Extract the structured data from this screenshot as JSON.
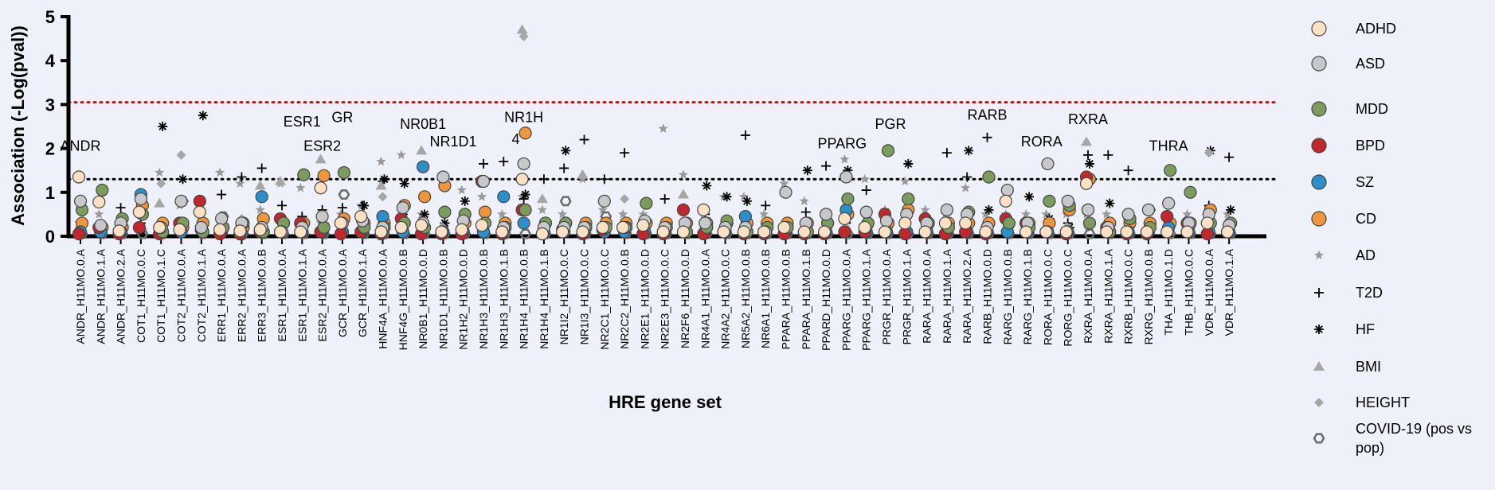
{
  "chart_data": {
    "type": "scatter",
    "title": "",
    "xlabel": "HRE gene set",
    "ylabel": "Association (-Log(pval))",
    "ylim": [
      0,
      5
    ],
    "yticks": [
      "0",
      "1",
      "2",
      "3",
      "4",
      "5"
    ],
    "thresholds": [
      {
        "value": 3.05,
        "style": "dotted",
        "color": "#c0141c"
      },
      {
        "value": 1.3,
        "style": "dotted",
        "color": "#000000"
      }
    ],
    "categories": [
      "ANDR_H11MO.0.A",
      "ANDR_H11MO.1.A",
      "ANDR_H11MO.2.A",
      "COT1_H11MO.0.C",
      "COT1_H11MO.1.C",
      "COT2_H11MO.0.A",
      "COT2_H11MO.1.A",
      "ERR1_H11MO.0.A",
      "ERR2_H11MO.0.A",
      "ERR3_H11MO.0.B",
      "ESR1_H11MO.0.A",
      "ESR1_H11MO.1.A",
      "ESR2_H11MO.0.A",
      "GCR_H11MO.0.A",
      "GCR_H11MO.1.A",
      "HNF4A_H11MO.0.A",
      "HNF4G_H11MO.0.B",
      "NR0B1_H11MO.0.D",
      "NR1D1_H11MO.0.B",
      "NR1H2_H11MO.0.D",
      "NR1H3_H11MO.0.B",
      "NR1H3_H11MO.1.B",
      "NR1H4_H11MO.0.B",
      "NR1H4_H11MO.1.B",
      "NR1I2_H11MO.0.C",
      "NR1I3_H11MO.0.C",
      "NR2C1_H11MO.0.C",
      "NR2C2_H11MO.0.B",
      "NR2E1_H11MO.0.D",
      "NR2E3_H11MO.0.C",
      "NR2F6_H11MO.0.D",
      "NR4A1_H11MO.0.A",
      "NR4A2_H11MO.0.C",
      "NR5A2_H11MO.0.B",
      "NR6A1_H11MO.0.B",
      "PPARA_H11MO.0.B",
      "PPARA_H11MO.1.B",
      "PPARD_H11MO.0.D",
      "PPARG_H11MO.0.A",
      "PPARG_H11MO.1.A",
      "PRGR_H11MO.0.A",
      "PRGR_H11MO.1.A",
      "RARA_H11MO.0.A",
      "RARA_H11MO.1.A",
      "RARA_H11MO.2.A",
      "RARB_H11MO.0.D",
      "RARG_H11MO.0.B",
      "RARG_H11MO.1.B",
      "RORA_H11MO.0.C",
      "RORG_H11MO.0.C",
      "RXRA_H11MO.0.A",
      "RXRA_H11MO.1.A",
      "RXRB_H11MO.0.C",
      "RXRG_H11MO.0.B",
      "THA_H11MO.1.D",
      "THB_H11MO.0.C",
      "VDR_H11MO.0.A",
      "VDR_H11MO.1.A"
    ],
    "series": [
      {
        "name": "ADHD",
        "marker": "circle",
        "color": "#fbe0c4",
        "values": [
          1.35,
          0.78,
          0.12,
          0.55,
          0.2,
          0.15,
          0.55,
          0.15,
          0.12,
          0.15,
          0.1,
          0.1,
          1.1,
          0.3,
          0.45,
          0.1,
          0.2,
          0.25,
          0.1,
          0.15,
          0.25,
          0.1,
          1.3,
          0.05,
          0.1,
          0.1,
          0.2,
          0.2,
          0.25,
          0.1,
          0.1,
          0.6,
          0.1,
          0.1,
          0.1,
          0.2,
          0.1,
          0.1,
          0.4,
          0.2,
          0.1,
          0.3,
          0.1,
          0.3,
          0.3,
          0.1,
          0.8,
          0.1,
          0.1,
          0.1,
          1.2,
          0.1,
          0.1,
          0.1,
          0.1,
          0.1,
          0.3,
          0.1
        ]
      },
      {
        "name": "ASD",
        "marker": "circle",
        "color": "#c7c8cc",
        "values": [
          0.8,
          0.25,
          0.3,
          0.85,
          0.2,
          0.8,
          0.2,
          0.4,
          0.3,
          0.2,
          0.1,
          0.2,
          0.45,
          0.3,
          0.35,
          0.2,
          0.65,
          0.3,
          1.35,
          0.35,
          1.25,
          0.2,
          1.65,
          0.2,
          0.2,
          0.2,
          0.8,
          0.2,
          0.35,
          0.2,
          0.3,
          0.3,
          0.2,
          0.2,
          0.1,
          1.0,
          0.3,
          0.5,
          1.35,
          0.55,
          0.35,
          0.5,
          0.3,
          0.6,
          0.5,
          0.2,
          1.05,
          0.3,
          1.65,
          0.8,
          0.6,
          0.2,
          0.5,
          0.6,
          0.75,
          0.3,
          0.5,
          0.25
        ]
      },
      {
        "name": "MDD",
        "marker": "circle",
        "color": "#7c9c5d",
        "values": [
          0.6,
          1.05,
          0.4,
          0.5,
          0.1,
          0.3,
          0.1,
          0.2,
          0.3,
          0.1,
          0.3,
          1.4,
          0.2,
          1.45,
          0.2,
          0.2,
          0.3,
          0.2,
          0.55,
          0.5,
          0.3,
          0.2,
          0.6,
          0.3,
          0.3,
          0.2,
          0.2,
          0.2,
          0.75,
          0.2,
          0.1,
          0.2,
          0.35,
          0.1,
          0.2,
          0.2,
          0.1,
          0.3,
          0.85,
          0.3,
          1.95,
          0.85,
          0.3,
          0.2,
          0.55,
          1.35,
          0.3,
          0.2,
          0.8,
          0.7,
          0.3,
          0.1,
          0.4,
          0.2,
          1.5,
          1.0,
          0.3,
          0.3
        ]
      },
      {
        "name": "BPD",
        "marker": "circle",
        "color": "#c1272d",
        "values": [
          0.05,
          0.2,
          0.05,
          0.2,
          0.05,
          0.3,
          0.8,
          0.05,
          0.05,
          0.1,
          0.4,
          0.3,
          0.1,
          0.05,
          0.1,
          0.05,
          0.4,
          0.05,
          0.05,
          0.05,
          1.25,
          0.05,
          0.6,
          0.05,
          0.15,
          0.05,
          0.15,
          0.2,
          0.05,
          0.05,
          0.6,
          0.05,
          0.1,
          0.05,
          0.05,
          0.05,
          0.05,
          0.05,
          0.1,
          0.1,
          0.5,
          0.05,
          0.4,
          0.05,
          0.1,
          0.05,
          0.4,
          0.3,
          0.1,
          0.05,
          1.35,
          0.2,
          0.05,
          0.05,
          0.45,
          0.3,
          0.05,
          0.1
        ]
      },
      {
        "name": "SZ",
        "marker": "circle",
        "color": "#2d8fca",
        "values": [
          0.1,
          0.1,
          0.1,
          0.95,
          0.1,
          0.1,
          0.15,
          0.1,
          0.05,
          0.9,
          0.1,
          0.1,
          0.1,
          0.1,
          0.1,
          0.45,
          0.1,
          1.58,
          0.1,
          0.1,
          0.1,
          0.9,
          0.3,
          0.1,
          0.1,
          0.1,
          0.1,
          0.1,
          0.1,
          0.1,
          0.1,
          0.1,
          0.1,
          0.45,
          0.1,
          0.1,
          0.1,
          0.1,
          0.6,
          0.1,
          0.1,
          0.1,
          0.1,
          0.1,
          0.1,
          0.1,
          0.1,
          0.1,
          0.1,
          0.1,
          0.6,
          0.1,
          0.1,
          0.1,
          0.2,
          0.1,
          0.1,
          0.1
        ]
      },
      {
        "name": "CD",
        "marker": "circle",
        "color": "#f0963a",
        "values": [
          0.3,
          0.2,
          0.2,
          0.7,
          0.3,
          0.2,
          0.3,
          0.2,
          0.2,
          0.4,
          0.3,
          0.3,
          1.38,
          0.4,
          0.3,
          0.3,
          0.7,
          0.9,
          1.15,
          0.3,
          0.55,
          0.3,
          2.35,
          0.3,
          0.3,
          0.3,
          0.3,
          0.3,
          0.3,
          0.3,
          0.3,
          0.3,
          0.3,
          0.3,
          0.3,
          0.3,
          0.3,
          0.3,
          0.5,
          0.3,
          0.3,
          0.6,
          0.3,
          0.3,
          0.3,
          0.3,
          0.3,
          0.3,
          0.3,
          0.6,
          1.3,
          0.3,
          0.3,
          0.3,
          0.3,
          0.3,
          0.6,
          0.3
        ]
      },
      {
        "name": "AD",
        "marker": "star",
        "color": "#9a9a9a",
        "values": [
          0.3,
          0.5,
          0.3,
          1.0,
          1.45,
          0.7,
          0.8,
          1.45,
          1.2,
          0.6,
          1.2,
          1.1,
          0.3,
          0.5,
          0.7,
          1.7,
          1.85,
          0.5,
          1.3,
          1.05,
          0.9,
          0.5,
          0.9,
          0.6,
          0.5,
          1.3,
          0.6,
          0.5,
          0.5,
          2.45,
          1.4,
          0.5,
          0.9,
          0.9,
          0.5,
          1.2,
          0.8,
          0.5,
          1.75,
          1.3,
          0.6,
          1.25,
          0.6,
          0.5,
          1.1,
          0.5,
          0.5,
          0.5,
          0.5,
          0.5,
          0.5,
          0.5,
          0.5,
          0.6,
          0.5,
          0.5,
          0.5,
          0.5
        ]
      },
      {
        "name": "T2D",
        "marker": "plus",
        "color": "#000000",
        "values": [
          0.2,
          0.2,
          0.65,
          0.3,
          0.3,
          0.1,
          0.3,
          0.95,
          1.35,
          1.55,
          0.7,
          0.45,
          0.6,
          0.65,
          0.7,
          1.25,
          0.5,
          0.3,
          0.2,
          0.25,
          1.65,
          1.7,
          0.85,
          1.3,
          1.55,
          2.2,
          1.3,
          1.9,
          0.3,
          0.85,
          0.3,
          0.5,
          0.3,
          2.3,
          0.7,
          0.3,
          0.55,
          1.6,
          0.3,
          1.05,
          0.3,
          0.3,
          0.3,
          1.9,
          1.35,
          2.25,
          0.3,
          0.3,
          0.3,
          0.3,
          1.85,
          1.85,
          1.5,
          0.3,
          0.3,
          0.3,
          0.7,
          1.8
        ]
      },
      {
        "name": "HF",
        "marker": "asterisk",
        "color": "#000000",
        "values": [
          0.1,
          0.1,
          0.1,
          0.1,
          2.5,
          1.3,
          2.75,
          0.2,
          0.2,
          0.2,
          0.3,
          0.3,
          0.3,
          0.1,
          0.7,
          1.3,
          1.2,
          0.5,
          0.3,
          0.8,
          1.25,
          0.2,
          0.95,
          0.2,
          1.95,
          0.2,
          0.2,
          0.2,
          0.2,
          0.2,
          0.2,
          1.15,
          0.9,
          0.8,
          0.2,
          0.2,
          1.5,
          0.2,
          1.5,
          0.2,
          0.2,
          1.65,
          0.2,
          0.2,
          1.95,
          0.6,
          0.2,
          0.9,
          0.4,
          0.2,
          1.65,
          0.75,
          0.2,
          0.2,
          0.2,
          0.2,
          1.95,
          0.6
        ]
      },
      {
        "name": "BMI",
        "marker": "triangle",
        "color": "#a6a6a6",
        "values": [
          0.2,
          0.2,
          0.2,
          0.2,
          0.75,
          0.2,
          0.2,
          0.2,
          0.2,
          1.15,
          1.25,
          0.2,
          1.75,
          0.2,
          0.2,
          1.15,
          0.2,
          1.95,
          0.2,
          0.2,
          0.2,
          0.2,
          4.7,
          0.85,
          0.2,
          1.4,
          0.2,
          0.2,
          0.2,
          0.2,
          0.95,
          0.2,
          0.2,
          0.2,
          0.2,
          0.2,
          0.2,
          0.2,
          0.2,
          0.2,
          0.2,
          0.2,
          0.2,
          0.2,
          0.2,
          0.2,
          0.2,
          0.2,
          0.2,
          0.2,
          2.15,
          0.2,
          0.2,
          0.2,
          0.2,
          0.2,
          0.2,
          0.2
        ]
      },
      {
        "name": "HEIGHT",
        "marker": "diamond",
        "color": "#a6a6a6",
        "values": [
          0.2,
          0.2,
          0.2,
          0.2,
          1.2,
          1.85,
          0.2,
          0.2,
          0.4,
          0.2,
          0.2,
          0.2,
          0.2,
          0.2,
          0.2,
          0.9,
          0.2,
          0.2,
          0.2,
          0.2,
          0.2,
          0.2,
          4.55,
          0.2,
          0.2,
          0.2,
          0.2,
          0.85,
          0.2,
          0.2,
          0.2,
          0.2,
          0.2,
          0.2,
          0.2,
          0.2,
          0.2,
          0.2,
          0.2,
          0.2,
          0.2,
          0.2,
          0.2,
          0.2,
          0.2,
          0.2,
          0.2,
          0.2,
          0.2,
          0.2,
          0.2,
          0.2,
          0.2,
          0.2,
          0.2,
          0.2,
          1.9,
          0.2
        ]
      },
      {
        "name": "COVID-19 (pos vs pop)",
        "marker": "hexagon",
        "color": "#6b6b6b",
        "values": [
          0.05,
          0.05,
          0.05,
          0.05,
          0.05,
          0.8,
          0.05,
          0.45,
          0.05,
          0.05,
          0.05,
          0.05,
          0.05,
          0.95,
          0.05,
          0.05,
          0.05,
          0.05,
          0.05,
          0.05,
          0.05,
          0.05,
          0.05,
          0.05,
          0.8,
          0.05,
          0.45,
          0.05,
          0.05,
          0.05,
          0.05,
          0.05,
          0.05,
          0.05,
          0.05,
          0.05,
          0.05,
          0.05,
          0.05,
          0.05,
          0.05,
          0.05,
          0.05,
          0.05,
          0.05,
          0.05,
          0.05,
          0.05,
          0.05,
          0.05,
          0.05,
          0.05,
          0.05,
          0.6,
          0.05,
          0.05,
          0.05,
          0.05
        ]
      }
    ],
    "annotations": [
      {
        "text": "ANDR",
        "x": 0,
        "y": 1.95
      },
      {
        "text": "ESR1",
        "x": 11,
        "y": 2.5
      },
      {
        "text": "GR",
        "x": 13,
        "y": 2.6
      },
      {
        "text": "ESR2",
        "x": 12,
        "y": 1.95
      },
      {
        "text": "NR0B1",
        "x": 17,
        "y": 2.45
      },
      {
        "text": "NR1D1",
        "x": 18.5,
        "y": 2.05
      },
      {
        "text": "NR1H",
        "x": 22,
        "y": 2.6
      },
      {
        "text": "4",
        "x": 21.6,
        "y": 2.1
      },
      {
        "text": "PPARG",
        "x": 37.8,
        "y": 2.0
      },
      {
        "text": "PGR",
        "x": 40.2,
        "y": 2.45
      },
      {
        "text": "RARB",
        "x": 45,
        "y": 2.65
      },
      {
        "text": "RORA",
        "x": 47.7,
        "y": 2.05
      },
      {
        "text": "RXRA",
        "x": 50,
        "y": 2.55
      },
      {
        "text": "THRA",
        "x": 54,
        "y": 1.95
      }
    ],
    "legend_position": "right"
  }
}
